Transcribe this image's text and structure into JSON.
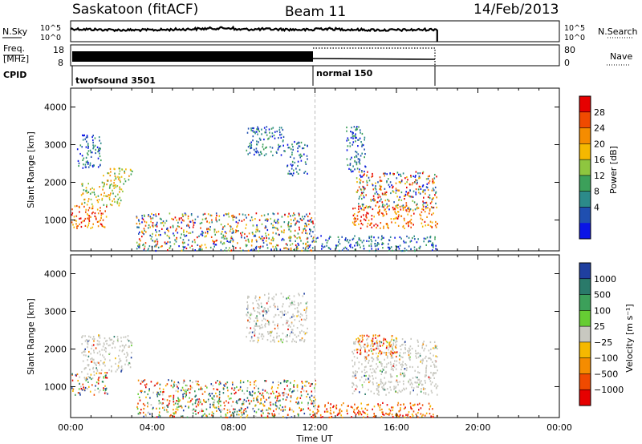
{
  "header": {
    "radar": "Saskatoon (fitACF)",
    "beam": "Beam 11",
    "date": "14/Feb/2013"
  },
  "top_panels": {
    "nsky_label": "N.Sky",
    "nsky_ticks": [
      "10^5",
      "10^0"
    ],
    "nsearch_label": "N.Search",
    "freq_label": "Freq.",
    "freq_unit": "[MHz]",
    "freq_ticks": [
      "18",
      "8"
    ],
    "nave_label": "Nave",
    "nave_ticks": [
      "80",
      "0"
    ],
    "cpid_label": "CPID",
    "cpid_segments": [
      {
        "label": "twofsound 3501",
        "start_h": 0,
        "end_h": 12
      },
      {
        "label": "normal 150",
        "start_h": 12,
        "end_h": 18
      }
    ]
  },
  "chart_data": [
    {
      "type": "heatmap",
      "title": "Power",
      "xlabel": "",
      "ylabel": "Slant Range [km]",
      "xlim": [
        0,
        24
      ],
      "ylim": [
        180,
        4500
      ],
      "y_ticks": [
        1000,
        2000,
        3000,
        4000
      ],
      "colorbar": {
        "label": "Power [dB]",
        "ticks": [
          "28",
          "24",
          "20",
          "16",
          "12",
          "8",
          "4"
        ],
        "colors": [
          "#e60000",
          "#f04a00",
          "#f58c00",
          "#f5b800",
          "#8ec63f",
          "#3ca05a",
          "#2c8a8a",
          "#1f4fb0",
          "#0a14e6"
        ]
      },
      "scatter_regions": [
        {
          "start_h": 0.0,
          "end_h": 1.8,
          "range_low": 800,
          "range_high": 1400,
          "level": "high"
        },
        {
          "start_h": 0.5,
          "end_h": 2.6,
          "range_low": 1400,
          "range_high": 2000,
          "level": "mid"
        },
        {
          "start_h": 1.5,
          "end_h": 3.0,
          "range_low": 2000,
          "range_high": 2400,
          "level": "mid"
        },
        {
          "start_h": 0.3,
          "end_h": 1.5,
          "range_low": 2400,
          "range_high": 3300,
          "level": "low"
        },
        {
          "start_h": 3.2,
          "end_h": 12.0,
          "range_low": 200,
          "range_high": 1200,
          "level": "mixed"
        },
        {
          "start_h": 8.6,
          "end_h": 10.5,
          "range_low": 2700,
          "range_high": 3500,
          "level": "low"
        },
        {
          "start_h": 10.6,
          "end_h": 11.6,
          "range_low": 2200,
          "range_high": 3100,
          "level": "low"
        },
        {
          "start_h": 13.8,
          "end_h": 18.0,
          "range_low": 800,
          "range_high": 1400,
          "level": "high"
        },
        {
          "start_h": 14.0,
          "end_h": 18.0,
          "range_low": 1300,
          "range_high": 2300,
          "level": "mixed"
        },
        {
          "start_h": 13.5,
          "end_h": 14.5,
          "range_low": 2300,
          "range_high": 3500,
          "level": "low"
        },
        {
          "start_h": 12.0,
          "end_h": 18.0,
          "range_low": 200,
          "range_high": 600,
          "level": "low"
        }
      ]
    },
    {
      "type": "heatmap",
      "title": "Velocity",
      "xlabel": "Time UT",
      "ylabel": "Slant Range [km]",
      "xlim": [
        0,
        24
      ],
      "ylim": [
        180,
        4500
      ],
      "y_ticks": [
        1000,
        2000,
        3000,
        4000
      ],
      "x_ticks": [
        "00:00",
        "04:00",
        "08:00",
        "12:00",
        "16:00",
        "20:00",
        "00:00"
      ],
      "colorbar": {
        "label": "Velocity [m s⁻¹]",
        "ticks": [
          "1000",
          "500",
          "100",
          "25",
          "−25",
          "−100",
          "−500",
          "−1000"
        ],
        "colors": [
          "#1f3f9f",
          "#2a7a6a",
          "#3ca05a",
          "#66cc33",
          "#c8c8c0",
          "#f5b800",
          "#f58c00",
          "#f04a00",
          "#e60000"
        ]
      },
      "scatter_regions": [
        {
          "start_h": 0.0,
          "end_h": 1.8,
          "range_low": 800,
          "range_high": 1400,
          "level": "mixed"
        },
        {
          "start_h": 0.5,
          "end_h": 3.0,
          "range_low": 1400,
          "range_high": 2400,
          "level": "ground"
        },
        {
          "start_h": 3.2,
          "end_h": 12.0,
          "range_low": 200,
          "range_high": 1200,
          "level": "mixed"
        },
        {
          "start_h": 8.6,
          "end_h": 11.6,
          "range_low": 2200,
          "range_high": 3500,
          "level": "ground"
        },
        {
          "start_h": 13.8,
          "end_h": 18.0,
          "range_low": 800,
          "range_high": 2300,
          "level": "ground"
        },
        {
          "start_h": 14.0,
          "end_h": 16.0,
          "range_low": 1800,
          "range_high": 2400,
          "level": "neg"
        },
        {
          "start_h": 12.0,
          "end_h": 18.0,
          "range_low": 200,
          "range_high": 600,
          "level": "neg"
        }
      ]
    }
  ]
}
